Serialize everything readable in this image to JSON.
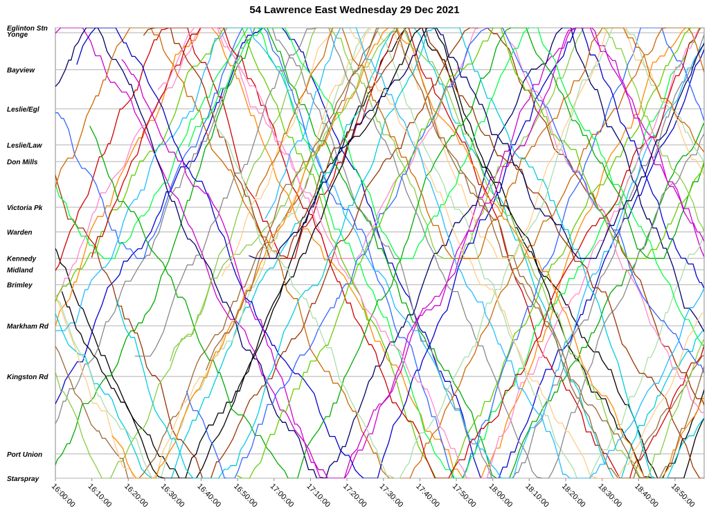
{
  "title": "54 Lawrence East Wednesday 29 Dec 2021",
  "chart_data": {
    "type": "line",
    "title": "54 Lawrence East Wednesday 29 Dec 2021",
    "x_tick_labels": [
      "16:00:00",
      "16:10:00",
      "16:20:00",
      "16:30:00",
      "16:40:00",
      "16:50:00",
      "17:00:00",
      "17:10:00",
      "17:20:00",
      "17:30:00",
      "17:40:00",
      "17:50:00",
      "18:00:00",
      "18:10:00",
      "18:20:00",
      "18:30:00",
      "18:40:00",
      "18:50:00"
    ],
    "x_range_minutes": [
      0,
      178
    ],
    "stops": [
      {
        "name": "Eglinton Stn",
        "pos": 0.0
      },
      {
        "name": "Yonge",
        "pos": 1.5
      },
      {
        "name": "Bayview",
        "pos": 12.6
      },
      {
        "name": "Leslie/Egl",
        "pos": 24.3
      },
      {
        "name": "Leslie/Law",
        "pos": 35.1
      },
      {
        "name": "Don Mills",
        "pos": 40.1
      },
      {
        "name": "Victoria Pk",
        "pos": 53.8
      },
      {
        "name": "Warden",
        "pos": 61.2
      },
      {
        "name": "Kennedy",
        "pos": 69.1
      },
      {
        "name": "Midland",
        "pos": 72.5
      },
      {
        "name": "Brimley",
        "pos": 77.0
      },
      {
        "name": "Markham Rd",
        "pos": 89.3
      },
      {
        "name": "Kingston Rd",
        "pos": 104.5
      },
      {
        "name": "Port Union",
        "pos": 127.7
      },
      {
        "name": "Starspray",
        "pos": 135.0
      }
    ],
    "grid": "horizontal at each stop",
    "legend": "none",
    "colors": [
      "#000000",
      "#0000cc",
      "#cc0000",
      "#00aa00",
      "#ff8800",
      "#00ccdd",
      "#cc00cc",
      "#888888",
      "#993300",
      "#ff88cc",
      "#88cc44",
      "#3366ff",
      "#00ff44",
      "#996633",
      "#aaddaa",
      "#ffcc88",
      "#66cc00",
      "#000066",
      "#cc6600",
      "#22bbff"
    ],
    "series_descriptor": "Vehicle trips zigzag between Eglinton Stn and Starspray (full) or Kennedy (short turn), roughly 52-62 min per one-way full run; about 40 vehicles in service, each line one colour"
  }
}
